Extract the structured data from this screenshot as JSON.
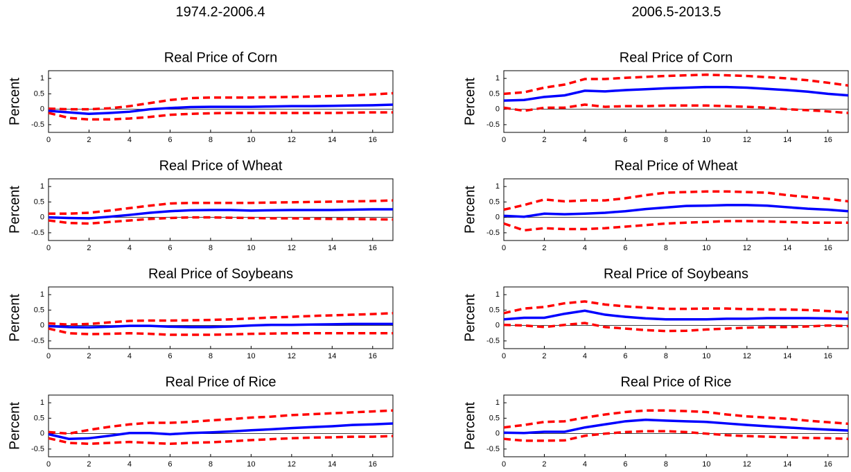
{
  "panels": [
    "1974.2-2006.4",
    "2006.5-2013.5"
  ],
  "chart_data": [
    {
      "type": "line",
      "title": "Real Price of Corn",
      "ylabel": "Percent",
      "x": [
        0,
        1,
        2,
        3,
        4,
        5,
        6,
        7,
        8,
        9,
        10,
        11,
        12,
        13,
        14,
        15,
        16,
        17
      ],
      "xlim": [
        0,
        17
      ],
      "xticks": [
        0,
        2,
        4,
        6,
        8,
        10,
        12,
        14,
        16
      ],
      "ylim": [
        -0.75,
        1.25
      ],
      "yticks": [
        -0.5,
        0,
        0.5,
        1
      ],
      "hline": 0,
      "series": [
        {
          "color": "#ff0000",
          "dashed": true,
          "values": [
            0.02,
            0,
            0,
            0.03,
            0.1,
            0.2,
            0.3,
            0.36,
            0.38,
            0.38,
            0.38,
            0.39,
            0.4,
            0.41,
            0.43,
            0.45,
            0.48,
            0.52
          ]
        },
        {
          "color": "#0000ff",
          "dashed": false,
          "values": [
            -0.05,
            -0.1,
            -0.15,
            -0.12,
            -0.08,
            0,
            0.04,
            0.07,
            0.08,
            0.08,
            0.08,
            0.09,
            0.1,
            0.1,
            0.11,
            0.12,
            0.13,
            0.15
          ]
        },
        {
          "color": "#ff0000",
          "dashed": true,
          "values": [
            -0.12,
            -0.28,
            -0.33,
            -0.33,
            -0.3,
            -0.25,
            -0.18,
            -0.15,
            -0.13,
            -0.12,
            -0.12,
            -0.12,
            -0.12,
            -0.12,
            -0.12,
            -0.11,
            -0.1,
            -0.1
          ]
        }
      ]
    },
    {
      "type": "line",
      "title": "Real Price of Wheat",
      "ylabel": "Percent",
      "x": [
        0,
        1,
        2,
        3,
        4,
        5,
        6,
        7,
        8,
        9,
        10,
        11,
        12,
        13,
        14,
        15,
        16,
        17
      ],
      "xlim": [
        0,
        17
      ],
      "xticks": [
        0,
        2,
        4,
        6,
        8,
        10,
        12,
        14,
        16
      ],
      "ylim": [
        -0.75,
        1.25
      ],
      "yticks": [
        -0.5,
        0,
        0.5,
        1
      ],
      "hline": 0,
      "series": [
        {
          "color": "#ff0000",
          "dashed": true,
          "values": [
            0.12,
            0.12,
            0.15,
            0.22,
            0.3,
            0.38,
            0.45,
            0.47,
            0.47,
            0.47,
            0.47,
            0.48,
            0.49,
            0.5,
            0.51,
            0.52,
            0.53,
            0.55
          ]
        },
        {
          "color": "#0000ff",
          "dashed": false,
          "values": [
            0,
            -0.02,
            -0.03,
            0.02,
            0.08,
            0.15,
            0.2,
            0.23,
            0.24,
            0.24,
            0.22,
            0.23,
            0.24,
            0.24,
            0.24,
            0.25,
            0.26,
            0.26
          ]
        },
        {
          "color": "#ff0000",
          "dashed": true,
          "values": [
            -0.1,
            -0.18,
            -0.2,
            -0.15,
            -0.1,
            -0.05,
            -0.02,
            0,
            0,
            -0.01,
            -0.02,
            -0.03,
            -0.03,
            -0.04,
            -0.05,
            -0.05,
            -0.06,
            -0.07
          ]
        }
      ]
    },
    {
      "type": "line",
      "title": "Real Price of Soybeans",
      "ylabel": "Percent",
      "x": [
        0,
        1,
        2,
        3,
        4,
        5,
        6,
        7,
        8,
        9,
        10,
        11,
        12,
        13,
        14,
        15,
        16,
        17
      ],
      "xlim": [
        0,
        17
      ],
      "xticks": [
        0,
        2,
        4,
        6,
        8,
        10,
        12,
        14,
        16
      ],
      "ylim": [
        -0.75,
        1.25
      ],
      "yticks": [
        -0.5,
        0,
        0.5,
        1
      ],
      "hline": 0,
      "series": [
        {
          "color": "#ff0000",
          "dashed": true,
          "values": [
            0.07,
            0.03,
            0.05,
            0.1,
            0.15,
            0.16,
            0.16,
            0.17,
            0.18,
            0.2,
            0.23,
            0.26,
            0.28,
            0.31,
            0.33,
            0.35,
            0.37,
            0.4
          ]
        },
        {
          "color": "#0000ff",
          "dashed": false,
          "values": [
            -0.02,
            -0.05,
            -0.06,
            -0.04,
            -0.01,
            -0.01,
            -0.04,
            -0.05,
            -0.05,
            -0.03,
            0,
            0.02,
            0.02,
            0.03,
            0.04,
            0.05,
            0.05,
            0.05
          ]
        },
        {
          "color": "#ff0000",
          "dashed": true,
          "values": [
            -0.1,
            -0.25,
            -0.28,
            -0.27,
            -0.25,
            -0.27,
            -0.3,
            -0.3,
            -0.3,
            -0.29,
            -0.27,
            -0.26,
            -0.25,
            -0.25,
            -0.25,
            -0.25,
            -0.25,
            -0.25
          ]
        }
      ]
    },
    {
      "type": "line",
      "title": "Real Price of Rice",
      "ylabel": "Percent",
      "x": [
        0,
        1,
        2,
        3,
        4,
        5,
        6,
        7,
        8,
        9,
        10,
        11,
        12,
        13,
        14,
        15,
        16,
        17
      ],
      "xlim": [
        0,
        17
      ],
      "xticks": [
        0,
        2,
        4,
        6,
        8,
        10,
        12,
        14,
        16
      ],
      "ylim": [
        -0.75,
        1.25
      ],
      "yticks": [
        -0.5,
        0,
        0.5,
        1
      ],
      "hline": 0,
      "series": [
        {
          "color": "#ff0000",
          "dashed": true,
          "values": [
            0.05,
            0,
            0.12,
            0.22,
            0.3,
            0.35,
            0.35,
            0.38,
            0.43,
            0.47,
            0.52,
            0.55,
            0.6,
            0.63,
            0.66,
            0.69,
            0.72,
            0.75
          ]
        },
        {
          "color": "#0000ff",
          "dashed": false,
          "values": [
            -0.02,
            -0.17,
            -0.15,
            -0.07,
            0.02,
            0.02,
            -0.02,
            0.02,
            0.04,
            0.07,
            0.11,
            0.14,
            0.18,
            0.21,
            0.24,
            0.28,
            0.3,
            0.33
          ]
        },
        {
          "color": "#ff0000",
          "dashed": true,
          "values": [
            -0.15,
            -0.3,
            -0.33,
            -0.3,
            -0.27,
            -0.3,
            -0.33,
            -0.3,
            -0.28,
            -0.25,
            -0.21,
            -0.18,
            -0.15,
            -0.13,
            -0.12,
            -0.1,
            -0.1,
            -0.08
          ]
        }
      ]
    },
    {
      "type": "line",
      "title": "Real Price of Corn",
      "ylabel": "Percent",
      "x": [
        0,
        1,
        2,
        3,
        4,
        5,
        6,
        7,
        8,
        9,
        10,
        11,
        12,
        13,
        14,
        15,
        16,
        17
      ],
      "xlim": [
        0,
        17
      ],
      "xticks": [
        0,
        2,
        4,
        6,
        8,
        10,
        12,
        14,
        16
      ],
      "ylim": [
        -0.75,
        1.25
      ],
      "yticks": [
        -0.5,
        0,
        0.5,
        1
      ],
      "hline": 0,
      "series": [
        {
          "color": "#ff0000",
          "dashed": true,
          "values": [
            0.5,
            0.55,
            0.7,
            0.8,
            0.98,
            0.98,
            1.02,
            1.05,
            1.08,
            1.1,
            1.12,
            1.1,
            1.08,
            1.04,
            1.0,
            0.94,
            0.86,
            0.77
          ]
        },
        {
          "color": "#0000ff",
          "dashed": false,
          "values": [
            0.28,
            0.3,
            0.4,
            0.45,
            0.6,
            0.58,
            0.62,
            0.65,
            0.68,
            0.7,
            0.72,
            0.72,
            0.7,
            0.66,
            0.62,
            0.57,
            0.5,
            0.45
          ]
        },
        {
          "color": "#ff0000",
          "dashed": true,
          "values": [
            0.05,
            -0.05,
            0.05,
            0.05,
            0.15,
            0.08,
            0.1,
            0.1,
            0.12,
            0.12,
            0.12,
            0.1,
            0.08,
            0.05,
            0,
            -0.03,
            -0.07,
            -0.12
          ]
        }
      ]
    },
    {
      "type": "line",
      "title": "Real Price of Wheat",
      "ylabel": "Percent",
      "x": [
        0,
        1,
        2,
        3,
        4,
        5,
        6,
        7,
        8,
        9,
        10,
        11,
        12,
        13,
        14,
        15,
        16,
        17
      ],
      "xlim": [
        0,
        17
      ],
      "xticks": [
        0,
        2,
        4,
        6,
        8,
        10,
        12,
        14,
        16
      ],
      "ylim": [
        -0.75,
        1.25
      ],
      "yticks": [
        -0.5,
        0,
        0.5,
        1
      ],
      "hline": 0,
      "series": [
        {
          "color": "#ff0000",
          "dashed": true,
          "values": [
            0.25,
            0.4,
            0.58,
            0.52,
            0.55,
            0.55,
            0.62,
            0.72,
            0.8,
            0.82,
            0.84,
            0.84,
            0.82,
            0.8,
            0.72,
            0.66,
            0.6,
            0.52
          ]
        },
        {
          "color": "#0000ff",
          "dashed": false,
          "values": [
            0.05,
            0.02,
            0.12,
            0.1,
            0.12,
            0.15,
            0.2,
            0.27,
            0.32,
            0.37,
            0.38,
            0.4,
            0.4,
            0.38,
            0.33,
            0.28,
            0.25,
            0.2
          ]
        },
        {
          "color": "#ff0000",
          "dashed": true,
          "values": [
            -0.2,
            -0.42,
            -0.35,
            -0.38,
            -0.38,
            -0.35,
            -0.3,
            -0.25,
            -0.2,
            -0.17,
            -0.15,
            -0.12,
            -0.12,
            -0.13,
            -0.15,
            -0.17,
            -0.17,
            -0.17
          ]
        }
      ]
    },
    {
      "type": "line",
      "title": "Real Price of Soybeans",
      "ylabel": "Percent",
      "x": [
        0,
        1,
        2,
        3,
        4,
        5,
        6,
        7,
        8,
        9,
        10,
        11,
        12,
        13,
        14,
        15,
        16,
        17
      ],
      "xlim": [
        0,
        17
      ],
      "xticks": [
        0,
        2,
        4,
        6,
        8,
        10,
        12,
        14,
        16
      ],
      "ylim": [
        -0.75,
        1.25
      ],
      "yticks": [
        -0.5,
        0,
        0.5,
        1
      ],
      "hline": 0,
      "series": [
        {
          "color": "#ff0000",
          "dashed": true,
          "values": [
            0.4,
            0.55,
            0.6,
            0.72,
            0.78,
            0.68,
            0.62,
            0.58,
            0.54,
            0.54,
            0.55,
            0.55,
            0.53,
            0.52,
            0.52,
            0.5,
            0.47,
            0.42
          ]
        },
        {
          "color": "#0000ff",
          "dashed": false,
          "values": [
            0.2,
            0.25,
            0.25,
            0.38,
            0.48,
            0.35,
            0.28,
            0.23,
            0.2,
            0.2,
            0.2,
            0.22,
            0.22,
            0.24,
            0.24,
            0.24,
            0.23,
            0.22
          ]
        },
        {
          "color": "#ff0000",
          "dashed": true,
          "values": [
            0.02,
            0,
            -0.05,
            0.02,
            0.08,
            -0.05,
            -0.1,
            -0.15,
            -0.18,
            -0.17,
            -0.13,
            -0.1,
            -0.07,
            -0.05,
            -0.05,
            -0.03,
            0,
            -0.02
          ]
        }
      ]
    },
    {
      "type": "line",
      "title": "Real Price of Rice",
      "ylabel": "Percent",
      "x": [
        0,
        1,
        2,
        3,
        4,
        5,
        6,
        7,
        8,
        9,
        10,
        11,
        12,
        13,
        14,
        15,
        16,
        17
      ],
      "xlim": [
        0,
        17
      ],
      "xticks": [
        0,
        2,
        4,
        6,
        8,
        10,
        12,
        14,
        16
      ],
      "ylim": [
        -0.75,
        1.25
      ],
      "yticks": [
        -0.5,
        0,
        0.5,
        1
      ],
      "hline": 0,
      "series": [
        {
          "color": "#ff0000",
          "dashed": true,
          "values": [
            0.2,
            0.28,
            0.38,
            0.4,
            0.52,
            0.62,
            0.7,
            0.75,
            0.75,
            0.73,
            0.7,
            0.62,
            0.56,
            0.52,
            0.48,
            0.42,
            0.37,
            0.32
          ]
        },
        {
          "color": "#0000ff",
          "dashed": false,
          "values": [
            0.03,
            0.02,
            0.06,
            0.06,
            0.2,
            0.3,
            0.4,
            0.45,
            0.42,
            0.4,
            0.38,
            0.33,
            0.28,
            0.24,
            0.2,
            0.16,
            0.13,
            0.1
          ]
        },
        {
          "color": "#ff0000",
          "dashed": true,
          "values": [
            -0.17,
            -0.23,
            -0.23,
            -0.22,
            -0.07,
            0,
            0.05,
            0.08,
            0.08,
            0.05,
            0,
            -0.05,
            -0.08,
            -0.1,
            -0.12,
            -0.14,
            -0.15,
            -0.17
          ]
        }
      ]
    }
  ]
}
